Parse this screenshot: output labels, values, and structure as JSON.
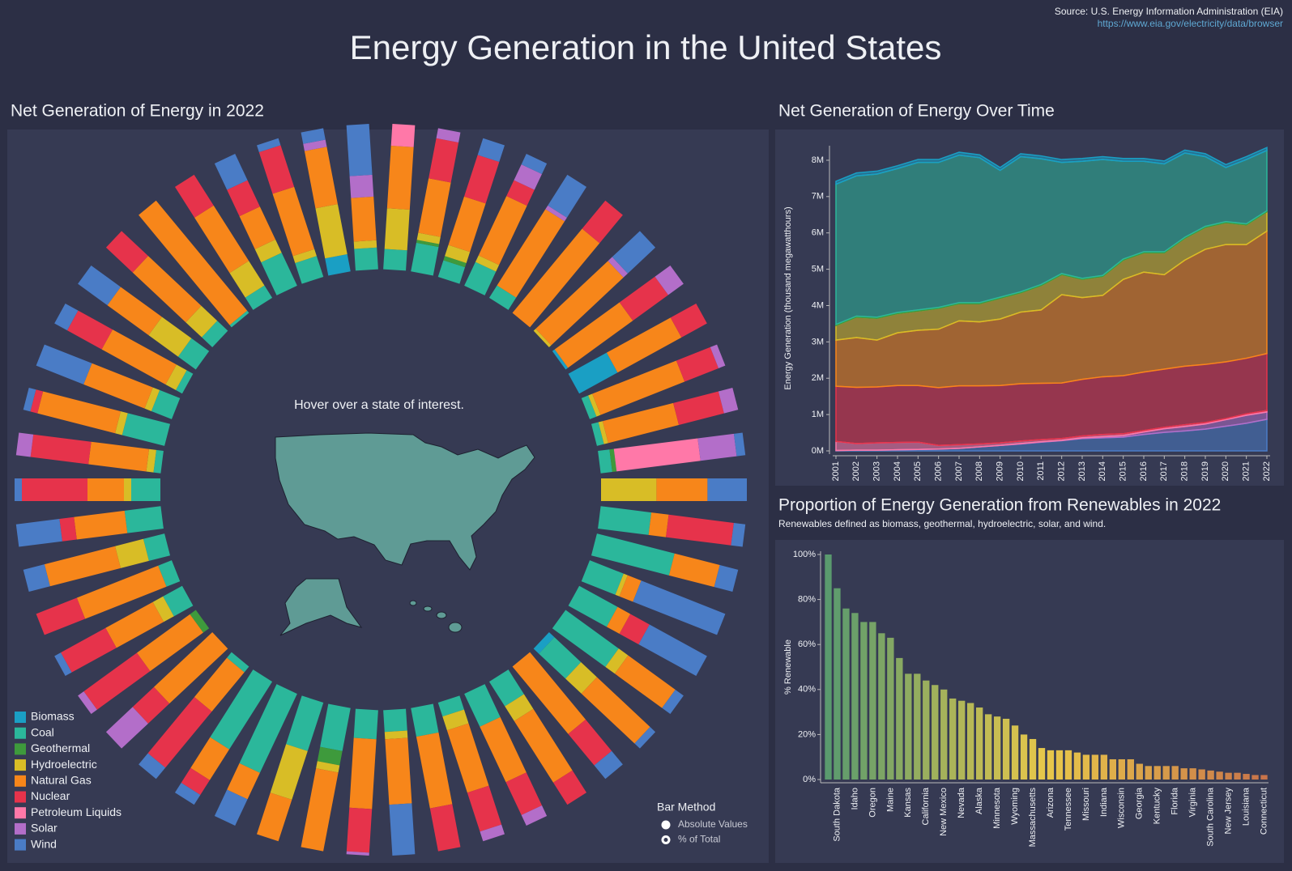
{
  "header": {
    "title": "Energy Generation in the United States",
    "source": "Source: U.S. Energy Information Administration (EIA)",
    "url": "https://www.eia.gov/electricity/data/browser"
  },
  "chart_data": [
    {
      "type": "radial_bar",
      "title": "Net Generation of Energy in 2022",
      "annotation": "Hover over a state of interest.",
      "ylim": [
        0,
        100
      ],
      "controls": {
        "title": "Bar Method",
        "options": [
          "Absolute Values",
          "% of Total"
        ],
        "selected": 1
      },
      "series": [
        {
          "name": "Biomass",
          "color": "#1a9fc4",
          "values": [
            0,
            0,
            0,
            0,
            0,
            0,
            0,
            2,
            30,
            0,
            0,
            0,
            0,
            0,
            0,
            0,
            0,
            0,
            5,
            0,
            0,
            0,
            0,
            0,
            0,
            0,
            0,
            0,
            0,
            0,
            0,
            0,
            0,
            0,
            0,
            0,
            0,
            0,
            0,
            0,
            0,
            0,
            0,
            0,
            0,
            0,
            0,
            0,
            12,
            0
          ]
        },
        {
          "name": "Coal",
          "color": "#2bb79b",
          "values": [
            14,
            20,
            12,
            18,
            10,
            0,
            0,
            0,
            0,
            5,
            5,
            8,
            0,
            35,
            55,
            25,
            30,
            45,
            25,
            0,
            20,
            25,
            10,
            20,
            15,
            20,
            30,
            35,
            60,
            55,
            5,
            0,
            0,
            15,
            10,
            15,
            25,
            20,
            5,
            30,
            15,
            5,
            15,
            10,
            2,
            10,
            25,
            15,
            0,
            15
          ]
        },
        {
          "name": "Geothermal",
          "color": "#3e9a3c",
          "values": [
            0,
            2,
            3,
            0,
            0,
            0,
            0,
            0,
            0,
            0,
            0,
            3,
            0,
            0,
            0,
            0,
            0,
            0,
            0,
            0,
            0,
            0,
            0,
            0,
            0,
            0,
            10,
            0,
            0,
            0,
            0,
            0,
            5,
            0,
            0,
            0,
            0,
            0,
            0,
            0,
            0,
            0,
            0,
            0,
            0,
            0,
            0,
            0,
            0,
            0
          ]
        },
        {
          "name": "Hydroelectric",
          "color": "#d8bd26",
          "values": [
            28,
            5,
            8,
            5,
            0,
            0,
            2,
            0,
            0,
            3,
            3,
            0,
            38,
            0,
            0,
            3,
            0,
            8,
            15,
            0,
            12,
            0,
            10,
            0,
            5,
            0,
            5,
            35,
            0,
            0,
            0,
            0,
            0,
            8,
            0,
            20,
            0,
            5,
            5,
            5,
            5,
            8,
            25,
            15,
            0,
            20,
            10,
            5,
            35,
            5
          ]
        },
        {
          "name": "Natural Gas",
          "color": "#f7861a",
          "values": [
            43,
            38,
            35,
            45,
            62,
            75,
            68,
            55,
            50,
            62,
            50,
            0,
            35,
            12,
            32,
            10,
            10,
            40,
            50,
            60,
            50,
            42,
            45,
            50,
            45,
            48,
            55,
            30,
            20,
            25,
            35,
            55,
            45,
            37,
            60,
            50,
            35,
            25,
            40,
            55,
            45,
            50,
            35,
            50,
            98,
            45,
            25,
            45,
            40,
            30
          ]
        },
        {
          "name": "Nuclear",
          "color": "#e6334b",
          "values": [
            0,
            28,
            30,
            12,
            0,
            25,
            0,
            30,
            20,
            25,
            32,
            0,
            0,
            45,
            0,
            0,
            15,
            0,
            0,
            28,
            18,
            25,
            28,
            30,
            0,
            30,
            0,
            0,
            0,
            12,
            50,
            20,
            45,
            35,
            30,
            0,
            10,
            45,
            40,
            5,
            0,
            27,
            0,
            25,
            0,
            25,
            20,
            30,
            0,
            0
          ]
        },
        {
          "name": "Petroleum Liquids",
          "color": "#ff78a8",
          "values": [
            15,
            0,
            0,
            0,
            0,
            0,
            0,
            0,
            0,
            0,
            0,
            58,
            0,
            0,
            0,
            0,
            0,
            0,
            0,
            0,
            0,
            0,
            0,
            0,
            0,
            0,
            0,
            0,
            0,
            0,
            0,
            0,
            0,
            0,
            0,
            0,
            0,
            0,
            0,
            0,
            0,
            0,
            0,
            0,
            0,
            0,
            0,
            0,
            0,
            0
          ]
        },
        {
          "name": "Solar",
          "color": "#b36ec9",
          "values": [
            0,
            7,
            0,
            12,
            3,
            0,
            4,
            13,
            0,
            5,
            10,
            25,
            0,
            0,
            0,
            0,
            0,
            0,
            0,
            0,
            0,
            8,
            7,
            0,
            0,
            2,
            0,
            0,
            0,
            0,
            0,
            25,
            5,
            0,
            0,
            0,
            0,
            0,
            10,
            0,
            0,
            0,
            0,
            0,
            0,
            0,
            0,
            0,
            5,
            15
          ]
        },
        {
          "name": "Wind",
          "color": "#4a7cc6",
          "values": [
            0,
            0,
            12,
            8,
            25,
            0,
            26,
            0,
            0,
            0,
            0,
            6,
            27,
            8,
            13,
            62,
            45,
            7,
            5,
            12,
            0,
            0,
            0,
            0,
            35,
            0,
            0,
            0,
            20,
            8,
            10,
            0,
            0,
            5,
            0,
            15,
            30,
            5,
            0,
            5,
            35,
            10,
            25,
            0,
            0,
            0,
            20,
            5,
            8,
            35
          ]
        }
      ]
    },
    {
      "type": "area",
      "stacked": true,
      "title": "Net Generation of Energy Over Time",
      "y_label": "Energy Generation (thousand megawatthours)",
      "x": [
        2001,
        2002,
        2003,
        2004,
        2005,
        2006,
        2007,
        2008,
        2009,
        2010,
        2011,
        2012,
        2013,
        2014,
        2015,
        2016,
        2017,
        2018,
        2019,
        2020,
        2021,
        2022
      ],
      "xlim": [
        2001,
        2022
      ],
      "ylim": [
        0,
        8400000
      ],
      "yticks": [
        {
          "value": 0,
          "label": "0M"
        },
        {
          "value": 1000000,
          "label": "1M"
        },
        {
          "value": 2000000,
          "label": "2M"
        },
        {
          "value": 3000000,
          "label": "3M"
        },
        {
          "value": 4000000,
          "label": "4M"
        },
        {
          "value": 5000000,
          "label": "5M"
        },
        {
          "value": 6000000,
          "label": "6M"
        },
        {
          "value": 7000000,
          "label": "7M"
        },
        {
          "value": 8000000,
          "label": "8M"
        }
      ],
      "series": [
        {
          "color": "#4a7cc6",
          "values": [
            10000,
            20000,
            20000,
            30000,
            40000,
            50000,
            70000,
            110000,
            150000,
            190000,
            240000,
            280000,
            340000,
            360000,
            380000,
            450000,
            510000,
            550000,
            600000,
            680000,
            760000,
            870000
          ]
        },
        {
          "color": "#b36ec9",
          "values": [
            0,
            0,
            0,
            0,
            0,
            0,
            0,
            0,
            0,
            10000,
            10000,
            10000,
            20000,
            30000,
            40000,
            70000,
            100000,
            120000,
            140000,
            180000,
            220000,
            200000
          ]
        },
        {
          "color": "#ff78a8",
          "values": [
            250000,
            180000,
            200000,
            200000,
            200000,
            100000,
            100000,
            80000,
            70000,
            70000,
            60000,
            50000,
            50000,
            60000,
            50000,
            40000,
            40000,
            50000,
            40000,
            30000,
            40000,
            40000
          ]
        },
        {
          "color": "#e6334b",
          "values": [
            1520000,
            1550000,
            1540000,
            1570000,
            1560000,
            1590000,
            1620000,
            1600000,
            1580000,
            1580000,
            1550000,
            1530000,
            1560000,
            1590000,
            1600000,
            1610000,
            1600000,
            1610000,
            1600000,
            1560000,
            1530000,
            1570000
          ]
        },
        {
          "color": "#f7861a",
          "values": [
            1270000,
            1370000,
            1290000,
            1450000,
            1520000,
            1610000,
            1790000,
            1760000,
            1830000,
            1970000,
            2020000,
            2430000,
            2250000,
            2240000,
            2650000,
            2750000,
            2600000,
            2920000,
            3170000,
            3230000,
            3130000,
            3370000
          ]
        },
        {
          "color": "#d8bd26",
          "values": [
            400000,
            560000,
            600000,
            530000,
            530000,
            570000,
            470000,
            500000,
            570000,
            530000,
            670000,
            550000,
            500000,
            520000,
            530000,
            530000,
            600000,
            600000,
            600000,
            600000,
            540000,
            530000
          ]
        },
        {
          "color": "#3e9a3c",
          "values": [
            30000,
            30000,
            30000,
            30000,
            30000,
            30000,
            30000,
            30000,
            30000,
            30000,
            30000,
            30000,
            30000,
            30000,
            30000,
            30000,
            30000,
            30000,
            30000,
            30000,
            30000,
            30000
          ]
        },
        {
          "color": "#2bb79b",
          "values": [
            3860000,
            3860000,
            3940000,
            3960000,
            4060000,
            3990000,
            4060000,
            3990000,
            3490000,
            3720000,
            3460000,
            3060000,
            3220000,
            3190000,
            2690000,
            2490000,
            2420000,
            2320000,
            1920000,
            1490000,
            1770000,
            1660000
          ]
        },
        {
          "color": "#1a9fc4",
          "values": [
            80000,
            80000,
            80000,
            80000,
            80000,
            80000,
            80000,
            80000,
            80000,
            80000,
            80000,
            80000,
            80000,
            80000,
            80000,
            80000,
            80000,
            80000,
            80000,
            80000,
            80000,
            80000
          ]
        }
      ]
    },
    {
      "type": "bar",
      "title": "Proportion of Energy Generation from Renewables in 2022",
      "subtitle": "Renewables defined as biomass, geothermal, hydroelectric, solar, and wind.",
      "y_label": "% Renewable",
      "categories": [
        null,
        "South Dakota",
        null,
        "Idaho",
        null,
        "Oregon",
        null,
        "Maine",
        null,
        "Kansas",
        null,
        "California",
        null,
        "New Mexico",
        null,
        "Nevada",
        null,
        "Alaska",
        null,
        "Minnesota",
        null,
        "Wyoming",
        null,
        "Massachusetts",
        null,
        "Arizona",
        null,
        "Tennessee",
        null,
        "Missouri",
        null,
        "Indiana",
        null,
        "Wisconsin",
        null,
        "Georgia",
        null,
        "Kentucky",
        null,
        "Florida",
        null,
        "Virginia",
        null,
        "South Carolina",
        null,
        "New Jersey",
        null,
        "Louisiana",
        null,
        "Connecticut"
      ],
      "values": [
        100,
        85,
        76,
        74,
        70,
        70,
        65,
        63,
        54,
        47,
        47,
        44,
        42,
        40,
        36,
        35,
        34,
        32,
        29,
        28,
        27,
        24,
        20,
        18,
        14,
        13,
        13,
        13,
        12,
        11,
        11,
        11,
        9,
        9,
        9,
        7,
        6,
        6,
        6,
        6,
        5,
        5,
        4.5,
        4,
        3.5,
        3,
        3,
        2.5,
        2,
        2
      ],
      "colors": [
        "#5a9a6e",
        "#e8c84a",
        "#c8744a"
      ],
      "ylim": [
        0,
        100
      ],
      "yticks": [
        {
          "value": 0,
          "label": "0%"
        },
        {
          "value": 20,
          "label": "20%"
        },
        {
          "value": 40,
          "label": "40%"
        },
        {
          "value": 60,
          "label": "60%"
        },
        {
          "value": 80,
          "label": "80%"
        },
        {
          "value": 100,
          "label": "100%"
        }
      ]
    }
  ]
}
